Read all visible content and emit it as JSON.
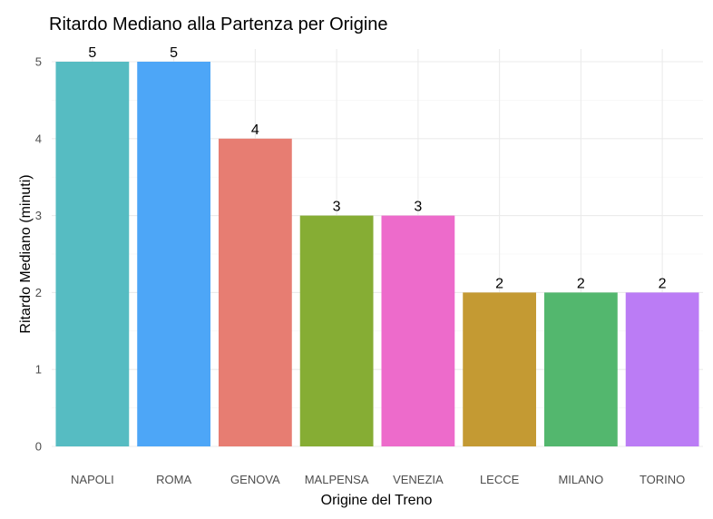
{
  "chart_data": {
    "type": "bar",
    "title": "Ritardo Mediano alla Partenza per Origine",
    "xlabel": "Origine del Treno",
    "ylabel": "Ritardo Mediano (minuti)",
    "categories": [
      "NAPOLI",
      "ROMA",
      "GENOVA",
      "MALPENSA",
      "VENEZIA",
      "LECCE",
      "MILANO",
      "TORINO"
    ],
    "values": [
      5,
      5,
      4,
      3,
      3,
      2,
      2,
      2
    ],
    "data_labels": [
      "5",
      "5",
      "4",
      "3",
      "3",
      "2",
      "2",
      "2"
    ],
    "colors": [
      "#56bcc2",
      "#4da6f7",
      "#e77d72",
      "#86ad34",
      "#ed6bcb",
      "#c49a33",
      "#53b76e",
      "#bb7cf5"
    ],
    "ylim": [
      0,
      5
    ],
    "yticks": [
      0,
      1,
      2,
      3,
      4,
      5
    ],
    "grid": true,
    "legend": "none"
  }
}
